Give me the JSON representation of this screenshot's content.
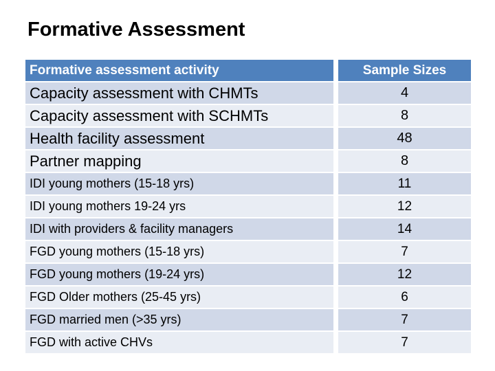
{
  "title": "Formative Assessment",
  "colors": {
    "header_bg": "#4F81BD",
    "header_text": "#FFFFFF",
    "band_dark": "#D0D8E8",
    "band_light": "#E9EDF4",
    "title_text": "#000000"
  },
  "table": {
    "headers": [
      "Formative assessment activity",
      "Sample Sizes"
    ],
    "rows": [
      {
        "activity": "Capacity assessment with CHMTs",
        "sample_size": "4"
      },
      {
        "activity": "Capacity assessment with SCHMTs",
        "sample_size": "8"
      },
      {
        "activity": "Health facility assessment",
        "sample_size": "48"
      },
      {
        "activity": "Partner mapping",
        "sample_size": "8"
      },
      {
        "activity": "IDI young mothers (15-18 yrs)",
        "sample_size": "11"
      },
      {
        "activity": "IDI young mothers 19-24 yrs",
        "sample_size": "12"
      },
      {
        "activity": "IDI with providers & facility managers",
        "sample_size": "14"
      },
      {
        "activity": "FGD young mothers (15-18 yrs)",
        "sample_size": "7"
      },
      {
        "activity": "FGD young mothers (19-24 yrs)",
        "sample_size": "12"
      },
      {
        "activity": "FGD Older mothers (25-45 yrs)",
        "sample_size": "6"
      },
      {
        "activity": "FGD married men (>35 yrs)",
        "sample_size": "7"
      },
      {
        "activity": "FGD with active CHVs",
        "sample_size": "7"
      }
    ]
  }
}
